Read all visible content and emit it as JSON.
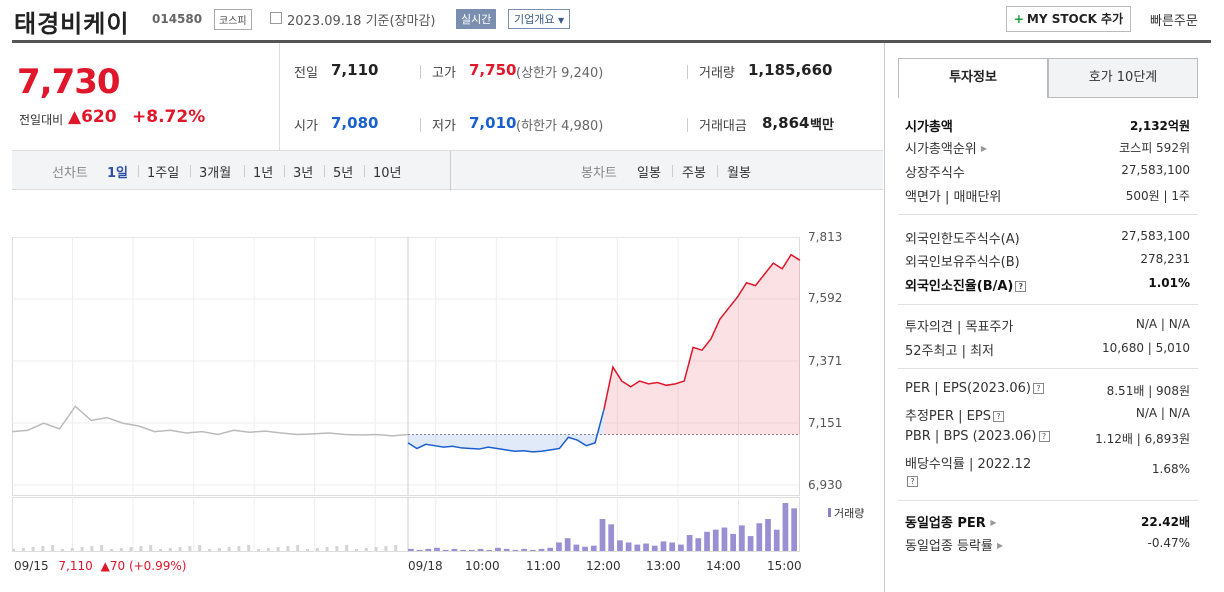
{
  "header": {
    "name": "태경비케이",
    "code": "014580",
    "market_badge": "코스피",
    "date": "2023.09.18 기준(장마감)",
    "live_badge": "실시간",
    "corp_badge": "기업개요",
    "mystock_btn": "MY STOCK 추가",
    "quick_order": "빠른주문"
  },
  "quote": {
    "price": "7,730",
    "change_label": "전일대비",
    "change_value": "▲620",
    "change_pct": "+8.72%",
    "prev_label": "전일",
    "prev": "7,110",
    "high_label": "고가",
    "high": "7,750",
    "upper_limit": "(상한가 9,240)",
    "volume_label": "거래량",
    "volume": "1,185,660",
    "open_label": "시가",
    "open": "7,080",
    "low_label": "저가",
    "low": "7,010",
    "lower_limit": "(하한가 4,980)",
    "amount_label": "거래대금",
    "amount": "8,864",
    "amount_unit": "백만"
  },
  "periods": {
    "line_label": "선차트",
    "items": [
      "1일",
      "1주일",
      "3개월",
      "1년",
      "3년",
      "5년",
      "10년"
    ],
    "active": "1일",
    "candle_label": "봉차트",
    "candles": [
      "일봉",
      "주봉",
      "월봉"
    ]
  },
  "chart_data": {
    "type": "line",
    "title": "",
    "y_ticks": [
      "7,813",
      "7,592",
      "7,371",
      "7,151",
      "6,930"
    ],
    "ylim": [
      6930,
      7813
    ],
    "reference_close": 7110,
    "x_ticks": [
      "09/15",
      "09/18",
      "10:00",
      "11:00",
      "12:00",
      "13:00",
      "14:00",
      "15:00"
    ],
    "prev_day_series": [
      7120,
      7125,
      7150,
      7130,
      7210,
      7160,
      7170,
      7150,
      7140,
      7120,
      7125,
      7115,
      7120,
      7110,
      7125,
      7118,
      7122,
      7115,
      7110,
      7112,
      7115,
      7110,
      7108,
      7110,
      7105,
      7110
    ],
    "today_series": [
      7080,
      7060,
      7075,
      7070,
      7065,
      7068,
      7062,
      7060,
      7058,
      7065,
      7060,
      7055,
      7050,
      7052,
      7048,
      7050,
      7055,
      7060,
      7100,
      7090,
      7070,
      7080,
      7200,
      7350,
      7300,
      7280,
      7300,
      7290,
      7295,
      7285,
      7290,
      7300,
      7420,
      7410,
      7450,
      7520,
      7560,
      7600,
      7650,
      7640,
      7680,
      7720,
      7700,
      7750,
      7730
    ],
    "volume_label": "거래량",
    "volume_series": [
      2,
      1,
      2,
      3,
      1,
      2,
      1,
      1,
      2,
      1,
      3,
      2,
      1,
      2,
      1,
      2,
      3,
      8,
      12,
      6,
      4,
      5,
      30,
      25,
      10,
      8,
      6,
      7,
      5,
      9,
      8,
      6,
      15,
      12,
      18,
      20,
      22,
      16,
      24,
      14,
      26,
      30,
      20,
      45,
      40
    ]
  },
  "bottom": {
    "prev_date": "09/15",
    "prev_close": "7,110",
    "prev_change": "▲70",
    "prev_pct": "(+0.99%)"
  },
  "tabs": [
    "투자정보",
    "호가 10단계"
  ],
  "invest": {
    "mcap_label": "시가총액",
    "mcap": "2,132억원",
    "rank_label": "시가총액순위",
    "rank": "코스피 592위",
    "shares_label": "상장주식수",
    "shares": "27,583,100",
    "par_label": "액면가",
    "unit_label": "매매단위",
    "par": "500원",
    "unit": "1주",
    "foreign_limit_label": "외국인한도주식수(A)",
    "foreign_limit": "27,583,100",
    "foreign_hold_label": "외국인보유주식수(B)",
    "foreign_hold": "278,231",
    "foreign_ratio_label": "외국인소진율(B/A)",
    "foreign_ratio": "1.01%",
    "opinion_label": "투자의견",
    "target_label": "목표주가",
    "opinion": "N/A",
    "target": "N/A",
    "w52_high_label": "52주최고",
    "w52_low_label": "최저",
    "w52_high": "10,680",
    "w52_low": "5,010",
    "per_label": "PER",
    "eps_label": "EPS(2023.06)",
    "per": "8.51배",
    "eps": "908원",
    "fper_label": "추정PER",
    "feps_label": "EPS",
    "fper": "N/A",
    "feps": "N/A",
    "pbr_label": "PBR",
    "bps_label": "BPS (2023.06)",
    "pbr": "1.12배",
    "bps": "6,893원",
    "div_label": "배당수익률",
    "div_date": "2022.12",
    "div": "1.68%",
    "sector_per_label": "동일업종 PER",
    "sector_per": "22.42배",
    "sector_chg_label": "동일업종 등락률",
    "sector_chg": "-0.47%"
  }
}
